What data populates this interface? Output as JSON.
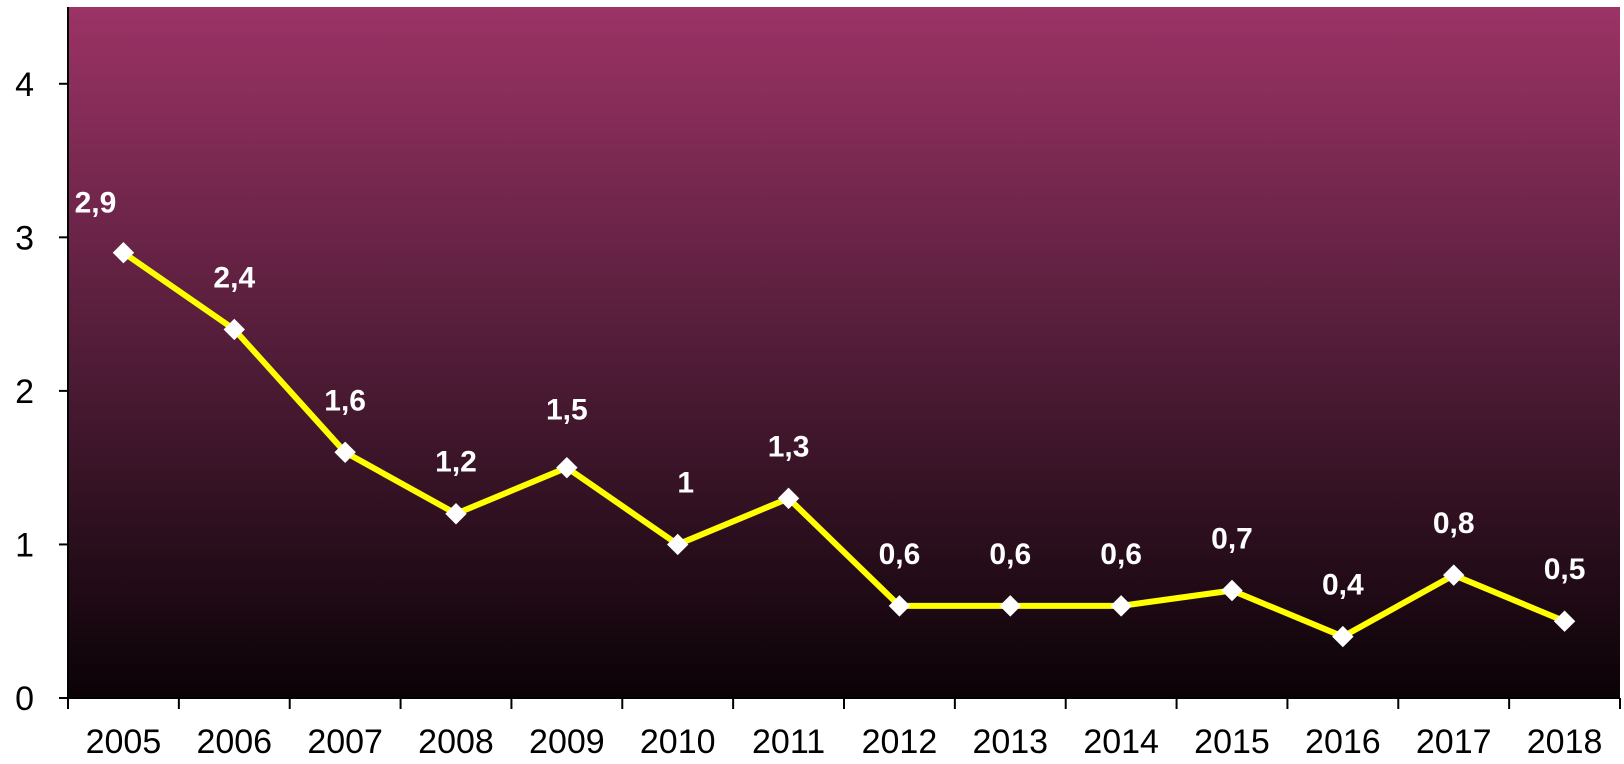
{
  "colors": {
    "plot_top": "#9c3366",
    "plot_bottom": "#0a0206",
    "line": "#ffff00",
    "marker": "#ffffff",
    "data_label": "#ffffff",
    "axis": "#000000"
  },
  "chart_data": {
    "type": "line",
    "title": "",
    "xlabel": "",
    "ylabel": "",
    "categories": [
      "2005",
      "2006",
      "2007",
      "2008",
      "2009",
      "2010",
      "2011",
      "2012",
      "2013",
      "2014",
      "2015",
      "2016",
      "2017",
      "2018"
    ],
    "series": [
      {
        "values": [
          2.9,
          2.4,
          1.6,
          1.2,
          1.5,
          1,
          1.3,
          0.6,
          0.6,
          0.6,
          0.7,
          0.4,
          0.8,
          0.5
        ],
        "labels": [
          "2,9",
          "2,4",
          "1,6",
          "1,2",
          "1,5",
          "1",
          "1,3",
          "0,6",
          "0,6",
          "0,6",
          "0,7",
          "0,4",
          "0,8",
          "0,5"
        ],
        "marker": "diamond"
      }
    ],
    "ylim": [
      0,
      4.5
    ],
    "yticks": [
      0,
      1,
      2,
      3,
      4
    ],
    "ytick_labels": [
      "0",
      "1",
      "2",
      "3",
      "4"
    ],
    "grid": false,
    "legend": "none",
    "background": "vertical gradient"
  }
}
